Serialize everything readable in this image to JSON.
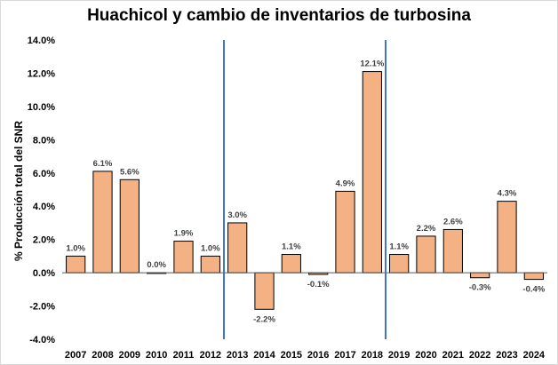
{
  "chart_data": {
    "type": "bar",
    "title": "Huachicol y cambio de inventarios de turbosina",
    "xlabel": "",
    "ylabel": "% Producción total del SNR",
    "categories": [
      "2007",
      "2008",
      "2009",
      "2010",
      "2011",
      "2012",
      "2013",
      "2014",
      "2015",
      "2016",
      "2017",
      "2018",
      "2019",
      "2020",
      "2021",
      "2022",
      "2023",
      "2024"
    ],
    "values": [
      1.0,
      6.1,
      5.6,
      0.0,
      1.9,
      1.0,
      3.0,
      -2.2,
      1.1,
      -0.1,
      4.9,
      12.1,
      1.1,
      2.2,
      2.6,
      -0.3,
      4.3,
      -0.4
    ],
    "data_labels": [
      "1.0%",
      "6.1%",
      "5.6%",
      "0.0%",
      "1.9%",
      "1.0%",
      "3.0%",
      "-2.2%",
      "1.1%",
      "-0.1%",
      "4.9%",
      "12.1%",
      "1.1%",
      "2.2%",
      "2.6%",
      "-0.3%",
      "4.3%",
      "-0.4%"
    ],
    "ylim": [
      -4.0,
      14.0
    ],
    "yticks": [
      -4.0,
      -2.0,
      0.0,
      2.0,
      4.0,
      6.0,
      8.0,
      10.0,
      12.0,
      14.0
    ],
    "ytick_labels": [
      "-4.0%",
      "-2.0%",
      "0.0%",
      "2.0%",
      "4.0%",
      "6.0%",
      "8.0%",
      "10.0%",
      "12.0%",
      "14.0%"
    ],
    "grid": false,
    "legend": "none",
    "bar_color": "#f4b183",
    "bar_edge_color": "#000000",
    "vertical_markers_between": [
      [
        "2012",
        "2013"
      ],
      [
        "2018",
        "2019"
      ]
    ],
    "marker_color": "#4472c4"
  }
}
